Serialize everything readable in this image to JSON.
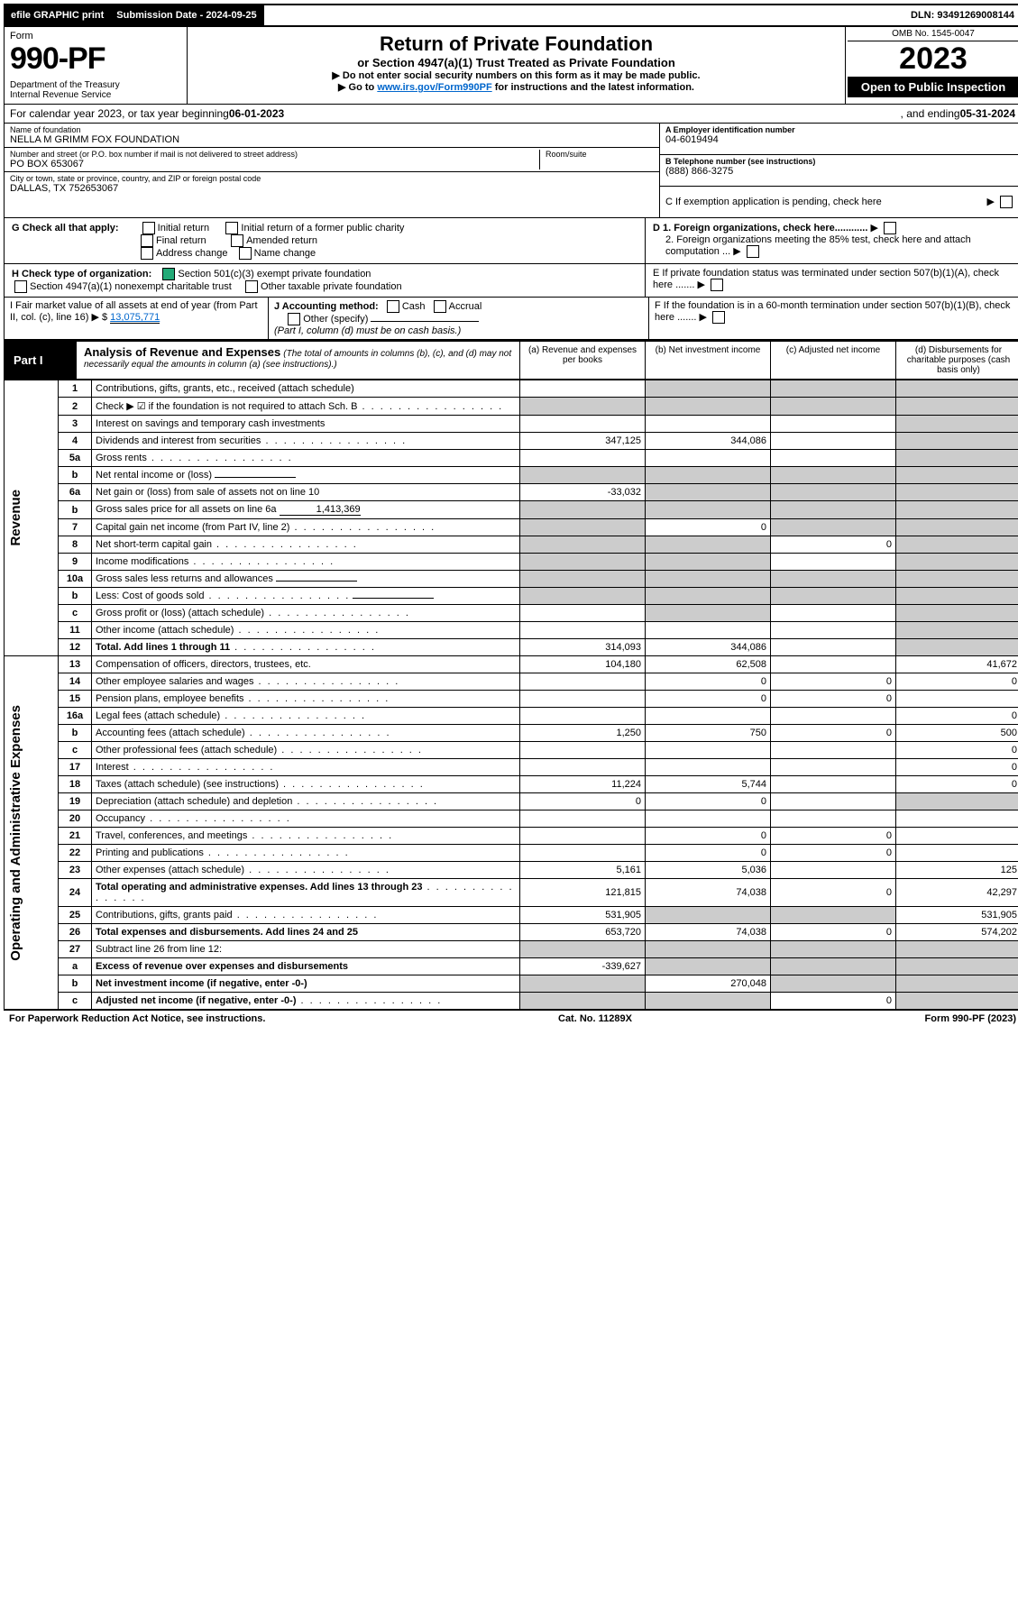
{
  "topbar": {
    "efile": "efile GRAPHIC print",
    "sub_label": "Submission Date - 2024-09-25",
    "dln": "DLN: 93491269008144"
  },
  "header": {
    "form_word": "Form",
    "form_number": "990-PF",
    "dept": "Department of the Treasury\nInternal Revenue Service",
    "title": "Return of Private Foundation",
    "subtitle": "or Section 4947(a)(1) Trust Treated as Private Foundation",
    "instr1": "▶ Do not enter social security numbers on this form as it may be made public.",
    "instr2_pre": "▶ Go to ",
    "instr2_link": "www.irs.gov/Form990PF",
    "instr2_post": " for instructions and the latest information.",
    "omb": "OMB No. 1545-0047",
    "year": "2023",
    "open": "Open to Public Inspection"
  },
  "calyear": {
    "label_pre": "For calendar year 2023, or tax year beginning ",
    "begin": "06-01-2023",
    "label_mid": " , and ending ",
    "end": "05-31-2024"
  },
  "id": {
    "name_label": "Name of foundation",
    "name": "NELLA M GRIMM FOX FOUNDATION",
    "addr_label": "Number and street (or P.O. box number if mail is not delivered to street address)",
    "room_label": "Room/suite",
    "addr": "PO BOX 653067",
    "city_label": "City or town, state or province, country, and ZIP or foreign postal code",
    "city": "DALLAS, TX  752653067",
    "A_label": "A Employer identification number",
    "A_val": "04-6019494",
    "B_label": "B Telephone number (see instructions)",
    "B_val": "(888) 866-3275",
    "C_label": "C If exemption application is pending, check here",
    "D1": "D 1. Foreign organizations, check here............",
    "D2": "2. Foreign organizations meeting the 85% test, check here and attach computation ...",
    "E": "E  If private foundation status was terminated under section 507(b)(1)(A), check here .......",
    "F": "F  If the foundation is in a 60-month termination under section 507(b)(1)(B), check here .......",
    "G_label": "G Check all that apply:",
    "G_opts": [
      "Initial return",
      "Initial return of a former public charity",
      "Final return",
      "Amended return",
      "Address change",
      "Name change"
    ],
    "H_label": "H Check type of organization:",
    "H_501c3": "Section 501(c)(3) exempt private foundation",
    "H_4947": "Section 4947(a)(1) nonexempt charitable trust",
    "H_other": "Other taxable private foundation",
    "I_label": "I Fair market value of all assets at end of year (from Part II, col. (c), line 16)",
    "I_val": "13,075,771",
    "J_label": "J Accounting method:",
    "J_cash": "Cash",
    "J_accrual": "Accrual",
    "J_other": "Other (specify)",
    "J_note": "(Part I, column (d) must be on cash basis.)"
  },
  "part1": {
    "label": "Part I",
    "title": "Analysis of Revenue and Expenses",
    "note": "(The total of amounts in columns (b), (c), and (d) may not necessarily equal the amounts in column (a) (see instructions).)",
    "col_a": "(a)  Revenue and expenses per books",
    "col_b": "(b)  Net investment income",
    "col_c": "(c)  Adjusted net income",
    "col_d": "(d)  Disbursements for charitable purposes (cash basis only)",
    "side_rev": "Revenue",
    "side_exp": "Operating and Administrative Expenses"
  },
  "rows": [
    {
      "n": "1",
      "d": "Contributions, gifts, grants, etc., received (attach schedule)",
      "a": "",
      "b": "",
      "c": "",
      "dc": "",
      "sa": false,
      "sb": true,
      "sc": true,
      "sd": true
    },
    {
      "n": "2",
      "d": "Check ▶ ☑ if the foundation is not required to attach Sch. B",
      "dotted": true,
      "a": "",
      "b": "",
      "c": "",
      "dc": "",
      "sa": true,
      "sb": true,
      "sc": true,
      "sd": true
    },
    {
      "n": "3",
      "d": "Interest on savings and temporary cash investments",
      "a": "",
      "b": "",
      "c": "",
      "dc": "",
      "sa": false,
      "sb": false,
      "sc": false,
      "sd": true
    },
    {
      "n": "4",
      "d": "Dividends and interest from securities",
      "dotted": true,
      "a": "347,125",
      "b": "344,086",
      "c": "",
      "dc": "",
      "sa": false,
      "sb": false,
      "sc": false,
      "sd": true
    },
    {
      "n": "5a",
      "d": "Gross rents",
      "dotted": true,
      "a": "",
      "b": "",
      "c": "",
      "dc": "",
      "sa": false,
      "sb": false,
      "sc": false,
      "sd": true
    },
    {
      "n": "b",
      "d": "Net rental income or (loss)",
      "inline": "",
      "a": "",
      "b": "",
      "c": "",
      "dc": "",
      "sa": true,
      "sb": true,
      "sc": true,
      "sd": true
    },
    {
      "n": "6a",
      "d": "Net gain or (loss) from sale of assets not on line 10",
      "a": "-33,032",
      "b": "",
      "c": "",
      "dc": "",
      "sa": false,
      "sb": true,
      "sc": true,
      "sd": true
    },
    {
      "n": "b",
      "d": "Gross sales price for all assets on line 6a",
      "inline": "1,413,369",
      "a": "",
      "b": "",
      "c": "",
      "dc": "",
      "sa": true,
      "sb": true,
      "sc": true,
      "sd": true
    },
    {
      "n": "7",
      "d": "Capital gain net income (from Part IV, line 2)",
      "dotted": true,
      "a": "",
      "b": "0",
      "c": "",
      "dc": "",
      "sa": true,
      "sb": false,
      "sc": true,
      "sd": true
    },
    {
      "n": "8",
      "d": "Net short-term capital gain",
      "dotted": true,
      "a": "",
      "b": "",
      "c": "0",
      "dc": "",
      "sa": true,
      "sb": true,
      "sc": false,
      "sd": true
    },
    {
      "n": "9",
      "d": "Income modifications",
      "dotted": true,
      "a": "",
      "b": "",
      "c": "",
      "dc": "",
      "sa": true,
      "sb": true,
      "sc": false,
      "sd": true
    },
    {
      "n": "10a",
      "d": "Gross sales less returns and allowances",
      "inline": "",
      "a": "",
      "b": "",
      "c": "",
      "dc": "",
      "sa": true,
      "sb": true,
      "sc": true,
      "sd": true
    },
    {
      "n": "b",
      "d": "Less: Cost of goods sold",
      "dotted": true,
      "inline": "",
      "a": "",
      "b": "",
      "c": "",
      "dc": "",
      "sa": true,
      "sb": true,
      "sc": true,
      "sd": true
    },
    {
      "n": "c",
      "d": "Gross profit or (loss) (attach schedule)",
      "dotted": true,
      "a": "",
      "b": "",
      "c": "",
      "dc": "",
      "sa": false,
      "sb": true,
      "sc": false,
      "sd": true
    },
    {
      "n": "11",
      "d": "Other income (attach schedule)",
      "dotted": true,
      "a": "",
      "b": "",
      "c": "",
      "dc": "",
      "sa": false,
      "sb": false,
      "sc": false,
      "sd": true
    },
    {
      "n": "12",
      "d": "Total. Add lines 1 through 11",
      "dotted": true,
      "bold": true,
      "a": "314,093",
      "b": "344,086",
      "c": "",
      "dc": "",
      "sa": false,
      "sb": false,
      "sc": false,
      "sd": true
    },
    {
      "n": "13",
      "d": "Compensation of officers, directors, trustees, etc.",
      "a": "104,180",
      "b": "62,508",
      "c": "",
      "dc": "41,672",
      "sa": false,
      "sb": false,
      "sc": false,
      "sd": false
    },
    {
      "n": "14",
      "d": "Other employee salaries and wages",
      "dotted": true,
      "a": "",
      "b": "0",
      "c": "0",
      "dc": "0",
      "sa": false,
      "sb": false,
      "sc": false,
      "sd": false
    },
    {
      "n": "15",
      "d": "Pension plans, employee benefits",
      "dotted": true,
      "a": "",
      "b": "0",
      "c": "0",
      "dc": "",
      "sa": false,
      "sb": false,
      "sc": false,
      "sd": false
    },
    {
      "n": "16a",
      "d": "Legal fees (attach schedule)",
      "dotted": true,
      "a": "",
      "b": "",
      "c": "",
      "dc": "0",
      "sa": false,
      "sb": false,
      "sc": false,
      "sd": false
    },
    {
      "n": "b",
      "d": "Accounting fees (attach schedule)",
      "dotted": true,
      "a": "1,250",
      "b": "750",
      "c": "0",
      "dc": "500",
      "sa": false,
      "sb": false,
      "sc": false,
      "sd": false
    },
    {
      "n": "c",
      "d": "Other professional fees (attach schedule)",
      "dotted": true,
      "a": "",
      "b": "",
      "c": "",
      "dc": "0",
      "sa": false,
      "sb": false,
      "sc": false,
      "sd": false
    },
    {
      "n": "17",
      "d": "Interest",
      "dotted": true,
      "a": "",
      "b": "",
      "c": "",
      "dc": "0",
      "sa": false,
      "sb": false,
      "sc": false,
      "sd": false
    },
    {
      "n": "18",
      "d": "Taxes (attach schedule) (see instructions)",
      "dotted": true,
      "a": "11,224",
      "b": "5,744",
      "c": "",
      "dc": "0",
      "sa": false,
      "sb": false,
      "sc": false,
      "sd": false
    },
    {
      "n": "19",
      "d": "Depreciation (attach schedule) and depletion",
      "dotted": true,
      "a": "0",
      "b": "0",
      "c": "",
      "dc": "",
      "sa": false,
      "sb": false,
      "sc": false,
      "sd": true
    },
    {
      "n": "20",
      "d": "Occupancy",
      "dotted": true,
      "a": "",
      "b": "",
      "c": "",
      "dc": "",
      "sa": false,
      "sb": false,
      "sc": false,
      "sd": false
    },
    {
      "n": "21",
      "d": "Travel, conferences, and meetings",
      "dotted": true,
      "a": "",
      "b": "0",
      "c": "0",
      "dc": "",
      "sa": false,
      "sb": false,
      "sc": false,
      "sd": false
    },
    {
      "n": "22",
      "d": "Printing and publications",
      "dotted": true,
      "a": "",
      "b": "0",
      "c": "0",
      "dc": "",
      "sa": false,
      "sb": false,
      "sc": false,
      "sd": false
    },
    {
      "n": "23",
      "d": "Other expenses (attach schedule)",
      "dotted": true,
      "a": "5,161",
      "b": "5,036",
      "c": "",
      "dc": "125",
      "sa": false,
      "sb": false,
      "sc": false,
      "sd": false
    },
    {
      "n": "24",
      "d": "Total operating and administrative expenses. Add lines 13 through 23",
      "dotted": true,
      "bold": true,
      "a": "121,815",
      "b": "74,038",
      "c": "0",
      "dc": "42,297",
      "sa": false,
      "sb": false,
      "sc": false,
      "sd": false
    },
    {
      "n": "25",
      "d": "Contributions, gifts, grants paid",
      "dotted": true,
      "a": "531,905",
      "b": "",
      "c": "",
      "dc": "531,905",
      "sa": false,
      "sb": true,
      "sc": true,
      "sd": false
    },
    {
      "n": "26",
      "d": "Total expenses and disbursements. Add lines 24 and 25",
      "bold": true,
      "a": "653,720",
      "b": "74,038",
      "c": "0",
      "dc": "574,202",
      "sa": false,
      "sb": false,
      "sc": false,
      "sd": false
    },
    {
      "n": "27",
      "d": "Subtract line 26 from line 12:",
      "a": "",
      "b": "",
      "c": "",
      "dc": "",
      "sa": true,
      "sb": true,
      "sc": true,
      "sd": true
    },
    {
      "n": "a",
      "d": "Excess of revenue over expenses and disbursements",
      "bold": true,
      "a": "-339,627",
      "b": "",
      "c": "",
      "dc": "",
      "sa": false,
      "sb": true,
      "sc": true,
      "sd": true
    },
    {
      "n": "b",
      "d": "Net investment income (if negative, enter -0-)",
      "bold": true,
      "a": "",
      "b": "270,048",
      "c": "",
      "dc": "",
      "sa": true,
      "sb": false,
      "sc": true,
      "sd": true
    },
    {
      "n": "c",
      "d": "Adjusted net income (if negative, enter -0-)",
      "bold": true,
      "dotted": true,
      "a": "",
      "b": "",
      "c": "0",
      "dc": "",
      "sa": true,
      "sb": true,
      "sc": false,
      "sd": true
    }
  ],
  "footer": {
    "left": "For Paperwork Reduction Act Notice, see instructions.",
    "mid": "Cat. No. 11289X",
    "right": "Form 990-PF (2023)"
  }
}
